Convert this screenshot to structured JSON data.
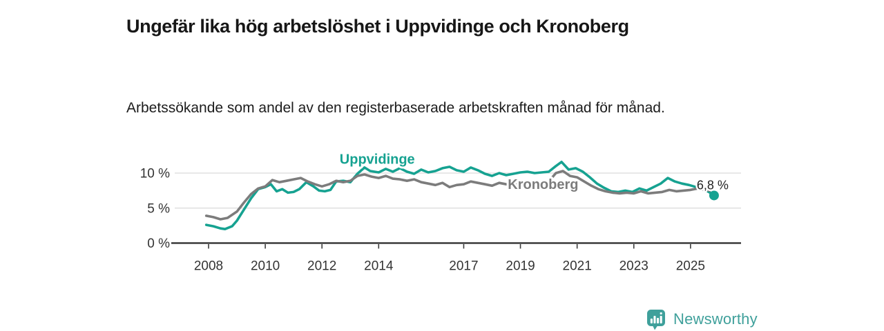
{
  "header": {
    "title": "Ungefär lika hög arbetslöshet i Uppvidinge och Kronoberg",
    "subtitle": "Arbetssökande som andel av den registerbaserade arbetskraften månad för månad."
  },
  "footer": {
    "brand": "Newsworthy",
    "brand_color": "#3FA09B"
  },
  "chart_data": {
    "type": "line",
    "title": "Ungefär lika hög arbetslöshet i Uppvidinge och Kronoberg",
    "xlabel": "",
    "ylabel": "",
    "y_unit": "%",
    "x_ticks": [
      2008,
      2010,
      2012,
      2014,
      2017,
      2019,
      2021,
      2023,
      2025
    ],
    "y_ticks": [
      0,
      5,
      10
    ],
    "y_tick_suffix": " %",
    "xlim": [
      2007.8,
      2026.8
    ],
    "ylim": [
      0,
      12.6
    ],
    "grid": "horizontal",
    "legend_position": "inline-labels",
    "last_value_label": "6,8 %",
    "series": [
      {
        "name": "Uppvidinge",
        "color": "#16A291",
        "points": [
          [
            2007.92,
            2.6
          ],
          [
            2008.17,
            2.4
          ],
          [
            2008.42,
            2.1
          ],
          [
            2008.58,
            2.0
          ],
          [
            2008.83,
            2.4
          ],
          [
            2009.0,
            3.2
          ],
          [
            2009.25,
            4.8
          ],
          [
            2009.5,
            6.4
          ],
          [
            2009.75,
            7.7
          ],
          [
            2010.0,
            8.0
          ],
          [
            2010.2,
            8.4
          ],
          [
            2010.4,
            7.4
          ],
          [
            2010.6,
            7.7
          ],
          [
            2010.8,
            7.2
          ],
          [
            2011.0,
            7.3
          ],
          [
            2011.2,
            7.7
          ],
          [
            2011.45,
            8.7
          ],
          [
            2011.7,
            8.1
          ],
          [
            2011.9,
            7.5
          ],
          [
            2012.1,
            7.4
          ],
          [
            2012.3,
            7.6
          ],
          [
            2012.5,
            8.8
          ],
          [
            2012.75,
            8.9
          ],
          [
            2013.0,
            8.7
          ],
          [
            2013.25,
            9.9
          ],
          [
            2013.5,
            10.8
          ],
          [
            2013.7,
            10.3
          ],
          [
            2014.0,
            10.1
          ],
          [
            2014.25,
            10.6
          ],
          [
            2014.5,
            10.2
          ],
          [
            2014.75,
            10.7
          ],
          [
            2015.0,
            10.2
          ],
          [
            2015.25,
            9.9
          ],
          [
            2015.5,
            10.5
          ],
          [
            2015.75,
            10.1
          ],
          [
            2016.0,
            10.3
          ],
          [
            2016.25,
            10.7
          ],
          [
            2016.5,
            10.9
          ],
          [
            2016.75,
            10.4
          ],
          [
            2017.0,
            10.2
          ],
          [
            2017.25,
            10.8
          ],
          [
            2017.5,
            10.4
          ],
          [
            2017.75,
            9.9
          ],
          [
            2018.0,
            9.6
          ],
          [
            2018.25,
            10.0
          ],
          [
            2018.5,
            9.7
          ],
          [
            2018.75,
            9.9
          ],
          [
            2019.0,
            10.1
          ],
          [
            2019.25,
            10.2
          ],
          [
            2019.5,
            10.0
          ],
          [
            2019.75,
            10.1
          ],
          [
            2020.0,
            10.2
          ],
          [
            2020.25,
            11.0
          ],
          [
            2020.45,
            11.6
          ],
          [
            2020.7,
            10.5
          ],
          [
            2020.95,
            10.7
          ],
          [
            2021.2,
            10.2
          ],
          [
            2021.45,
            9.4
          ],
          [
            2021.7,
            8.5
          ],
          [
            2021.95,
            7.9
          ],
          [
            2022.2,
            7.4
          ],
          [
            2022.45,
            7.3
          ],
          [
            2022.7,
            7.5
          ],
          [
            2022.95,
            7.3
          ],
          [
            2023.2,
            7.8
          ],
          [
            2023.45,
            7.5
          ],
          [
            2023.7,
            8.0
          ],
          [
            2023.95,
            8.5
          ],
          [
            2024.2,
            9.3
          ],
          [
            2024.45,
            8.8
          ],
          [
            2024.7,
            8.5
          ],
          [
            2024.95,
            8.3
          ],
          [
            2025.2,
            8.0
          ],
          [
            2025.45,
            7.7
          ],
          [
            2025.65,
            7.3
          ],
          [
            2025.83,
            6.8
          ]
        ]
      },
      {
        "name": "Kronoberg",
        "color": "#7C7C7C",
        "points": [
          [
            2007.92,
            3.9
          ],
          [
            2008.17,
            3.7
          ],
          [
            2008.42,
            3.4
          ],
          [
            2008.67,
            3.6
          ],
          [
            2009.0,
            4.5
          ],
          [
            2009.25,
            5.8
          ],
          [
            2009.5,
            7.0
          ],
          [
            2009.75,
            7.8
          ],
          [
            2010.0,
            8.1
          ],
          [
            2010.25,
            9.0
          ],
          [
            2010.5,
            8.7
          ],
          [
            2010.75,
            8.9
          ],
          [
            2011.0,
            9.1
          ],
          [
            2011.25,
            9.3
          ],
          [
            2011.5,
            8.8
          ],
          [
            2011.75,
            8.4
          ],
          [
            2012.0,
            8.1
          ],
          [
            2012.25,
            8.4
          ],
          [
            2012.5,
            8.9
          ],
          [
            2012.75,
            8.7
          ],
          [
            2013.0,
            8.9
          ],
          [
            2013.25,
            9.6
          ],
          [
            2013.5,
            9.8
          ],
          [
            2013.75,
            9.5
          ],
          [
            2014.0,
            9.3
          ],
          [
            2014.25,
            9.6
          ],
          [
            2014.5,
            9.2
          ],
          [
            2014.75,
            9.1
          ],
          [
            2015.0,
            8.9
          ],
          [
            2015.25,
            9.1
          ],
          [
            2015.5,
            8.7
          ],
          [
            2015.75,
            8.5
          ],
          [
            2016.0,
            8.3
          ],
          [
            2016.25,
            8.6
          ],
          [
            2016.5,
            8.0
          ],
          [
            2016.75,
            8.3
          ],
          [
            2017.0,
            8.4
          ],
          [
            2017.25,
            8.8
          ],
          [
            2017.5,
            8.6
          ],
          [
            2017.75,
            8.4
          ],
          [
            2018.0,
            8.2
          ],
          [
            2018.25,
            8.6
          ],
          [
            2018.5,
            8.4
          ],
          [
            2018.75,
            8.3
          ],
          [
            2019.0,
            8.4
          ],
          [
            2019.25,
            8.6
          ],
          [
            2019.5,
            8.4
          ],
          [
            2019.75,
            8.5
          ],
          [
            2020.0,
            8.8
          ],
          [
            2020.25,
            10.0
          ],
          [
            2020.5,
            10.3
          ],
          [
            2020.75,
            9.6
          ],
          [
            2021.0,
            9.4
          ],
          [
            2021.25,
            8.8
          ],
          [
            2021.5,
            8.2
          ],
          [
            2021.75,
            7.7
          ],
          [
            2022.0,
            7.4
          ],
          [
            2022.25,
            7.2
          ],
          [
            2022.5,
            7.1
          ],
          [
            2022.75,
            7.2
          ],
          [
            2023.0,
            7.1
          ],
          [
            2023.25,
            7.4
          ],
          [
            2023.5,
            7.1
          ],
          [
            2023.75,
            7.2
          ],
          [
            2024.0,
            7.3
          ],
          [
            2024.25,
            7.6
          ],
          [
            2024.5,
            7.4
          ],
          [
            2024.75,
            7.5
          ],
          [
            2025.0,
            7.6
          ],
          [
            2025.25,
            7.8
          ],
          [
            2025.5,
            7.6
          ],
          [
            2025.67,
            7.5
          ]
        ]
      }
    ],
    "annotations": [
      {
        "kind": "series-label",
        "series": "Uppvidinge",
        "text": "Uppvidinge",
        "year": 2013.95,
        "pct": 11.35,
        "color": "#16A291"
      },
      {
        "kind": "series-label",
        "series": "Kronoberg",
        "text": "Kronoberg",
        "year": 2019.8,
        "pct": 7.72,
        "color": "#7C7C7C"
      },
      {
        "kind": "end-value",
        "text": "6,8 %",
        "year": 2025.78,
        "pct": 7.68
      }
    ]
  }
}
